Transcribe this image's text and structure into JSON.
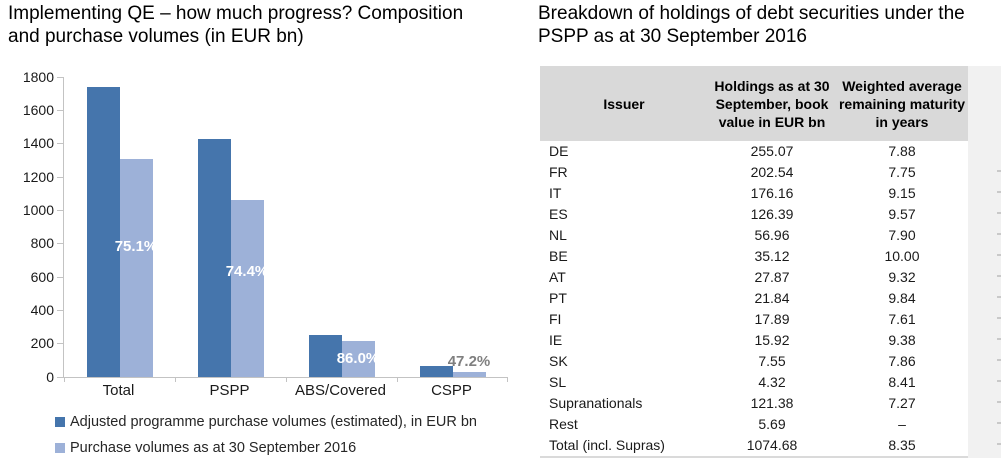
{
  "chart_data": [
    {
      "type": "bar",
      "title": "Implementing QE – how much progress? Composition and purchase volumes (in EUR bn)",
      "categories": [
        "Total",
        "PSPP",
        "ABS/Covered",
        "CSPP"
      ],
      "series": [
        {
          "name": "Adjusted programme purchase volumes (estimated), in EUR bn",
          "color": "#4575AC",
          "values": [
            1740,
            1426,
            252,
            64
          ]
        },
        {
          "name": "Purchase volumes as at 30 September 2016",
          "color": "#9DB1D8",
          "values": [
            1307,
            1061,
            217,
            30
          ]
        }
      ],
      "bar_labels": {
        "values": [
          "75.1%",
          "74.4%",
          "86.0%",
          "47.2%"
        ],
        "placement": [
          "inside",
          "inside",
          "inside",
          "above"
        ],
        "inside_color": "#FFFFFF",
        "above_color": "#7F7F7F"
      },
      "ylim": [
        0,
        1800
      ],
      "ytick_step": 200,
      "grid": false,
      "legend_position": "bottom-left"
    },
    {
      "type": "table",
      "title": "Breakdown of holdings of debt securities under the PSPP as at 30 September 2016",
      "columns": [
        "Issuer",
        "Holdings as at 30 September, book value in EUR bn",
        "Weighted average remaining maturity in years"
      ],
      "rows": [
        [
          "DE",
          "255.07",
          "7.88"
        ],
        [
          "FR",
          "202.54",
          "7.75"
        ],
        [
          "IT",
          "176.16",
          "9.15"
        ],
        [
          "ES",
          "126.39",
          "9.57"
        ],
        [
          "NL",
          "56.96",
          "7.90"
        ],
        [
          "BE",
          "35.12",
          "10.00"
        ],
        [
          "AT",
          "27.87",
          "9.32"
        ],
        [
          "PT",
          "21.84",
          "9.84"
        ],
        [
          "FI",
          "17.89",
          "7.61"
        ],
        [
          "IE",
          "15.92",
          "9.38"
        ],
        [
          "SK",
          "7.55",
          "7.86"
        ],
        [
          "SL",
          "4.32",
          "8.41"
        ],
        [
          "Supranationals",
          "121.38",
          "7.27"
        ],
        [
          "Rest",
          "5.69",
          "–"
        ],
        [
          "Total (incl. Supras)",
          "1074.68",
          "8.35"
        ]
      ]
    }
  ],
  "colors": {
    "dark_series": "#4575AC",
    "light_series": "#9DB1D8",
    "axis": "#C3C3C3",
    "table_header_bg": "#D9D9D9",
    "edge_strip_bg": "#F1F1F1",
    "pct_inside": "#FFFFFF",
    "pct_above": "#7F7F7F"
  }
}
